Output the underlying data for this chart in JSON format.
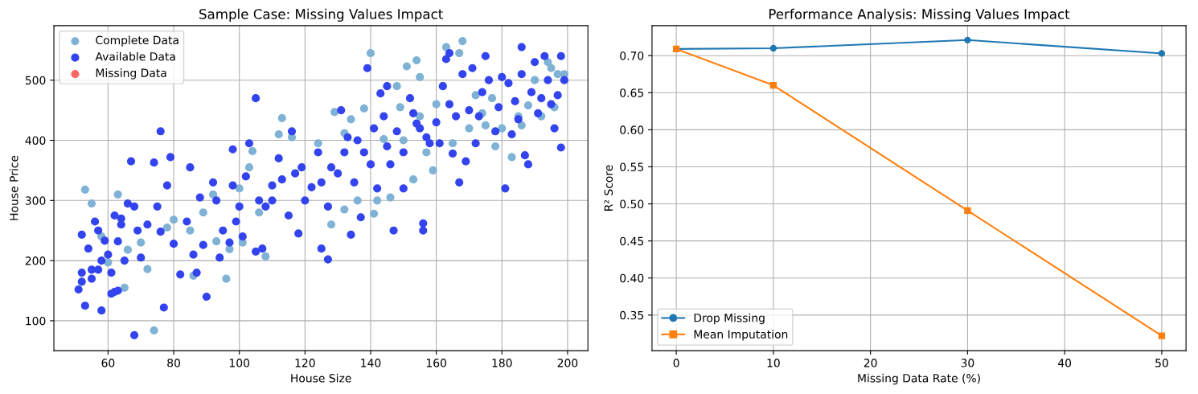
{
  "chart_data": [
    {
      "type": "scatter",
      "title": "Sample Case: Missing Values Impact",
      "xlabel": "House Size",
      "ylabel": "House Price",
      "xlim": [
        43.5,
        206.2
      ],
      "ylim": [
        50.3,
        590.7
      ],
      "xticks": [
        60,
        80,
        100,
        120,
        140,
        160,
        180,
        200
      ],
      "yticks": [
        100,
        200,
        300,
        400,
        500
      ],
      "grid": true,
      "legend": "top left",
      "marker": "circle",
      "series": [
        {
          "name": "Complete Data",
          "color": "#7fb2d5",
          "x": [
            53,
            55,
            58,
            60,
            63,
            65,
            66,
            70,
            72,
            74,
            78,
            80,
            85,
            86,
            89,
            92,
            93,
            96,
            97,
            100,
            101,
            103,
            104,
            106,
            108,
            112,
            113,
            116,
            124,
            128,
            129,
            132,
            132,
            134,
            136,
            138,
            140,
            141,
            142,
            144,
            146,
            148,
            149,
            151,
            153,
            154,
            155,
            155,
            157,
            159,
            160,
            162,
            163,
            165,
            167,
            168,
            170,
            172,
            174,
            175,
            177,
            180,
            183,
            185,
            186,
            188,
            190,
            192,
            194,
            195,
            196,
            197,
            199,
            178,
            150
          ],
          "values": [
            318,
            295,
            240,
            197,
            310,
            155,
            218,
            230,
            186,
            84,
            255,
            268,
            250,
            175,
            280,
            310,
            232,
            170,
            219,
            320,
            230,
            355,
            382,
            280,
            207,
            410,
            437,
            405,
            395,
            260,
            447,
            412,
            285,
            435,
            300,
            453,
            545,
            278,
            300,
            402,
            305,
            490,
            455,
            523,
            335,
            533,
            505,
            440,
            380,
            350,
            460,
            490,
            555,
            395,
            545,
            565,
            420,
            475,
            445,
            425,
            470,
            420,
            372,
            440,
            425,
            458,
            500,
            440,
            530,
            520,
            455,
            510,
            510,
            390,
            400
          ]
        },
        {
          "name": "Available Data",
          "color": "#3344ee",
          "x": [
            51,
            52,
            52,
            53,
            52,
            54,
            55,
            55,
            56,
            57,
            58,
            58,
            59,
            60,
            61,
            62,
            62,
            63,
            64,
            65,
            66,
            67,
            68,
            68,
            69,
            70,
            72,
            74,
            75,
            76,
            76,
            77,
            78,
            79,
            82,
            84,
            85,
            86,
            87,
            88,
            89,
            90,
            92,
            93,
            94,
            95,
            97,
            98,
            98,
            99,
            100,
            101,
            102,
            103,
            105,
            105,
            106,
            107,
            108,
            110,
            112,
            113,
            115,
            116,
            117,
            118,
            119,
            120,
            122,
            124,
            125,
            125,
            127,
            127,
            128,
            130,
            131,
            132,
            133,
            134,
            135,
            136,
            137,
            138,
            139,
            140,
            141,
            142,
            143,
            144,
            145,
            146,
            147,
            148,
            150,
            150,
            152,
            153,
            154,
            155,
            156,
            156,
            157,
            158,
            160,
            161,
            162,
            163,
            164,
            165,
            166,
            167,
            168,
            169,
            170,
            171,
            172,
            173,
            174,
            175,
            176,
            178,
            179,
            180,
            181,
            182,
            183,
            184,
            185,
            186,
            187,
            188,
            189,
            190,
            191,
            192,
            193,
            194,
            195,
            196,
            197,
            198,
            198,
            199,
            186,
            164,
            145,
            110,
            80,
            63,
            61,
            57,
            64
          ],
          "values": [
            152,
            165,
            180,
            125,
            243,
            220,
            170,
            185,
            265,
            250,
            200,
            117,
            233,
            210,
            180,
            275,
            148,
            232,
            270,
            200,
            295,
            365,
            290,
            76,
            250,
            205,
            260,
            363,
            290,
            415,
            248,
            122,
            325,
            372,
            177,
            265,
            355,
            210,
            180,
            305,
            226,
            140,
            330,
            300,
            205,
            250,
            230,
            385,
            325,
            265,
            290,
            240,
            340,
            395,
            470,
            215,
            300,
            220,
            290,
            325,
            370,
            335,
            275,
            415,
            345,
            245,
            355,
            300,
            322,
            380,
            220,
            330,
            290,
            202,
            355,
            345,
            450,
            380,
            405,
            243,
            330,
            400,
            272,
            380,
            520,
            360,
            420,
            320,
            478,
            440,
            390,
            360,
            250,
            415,
            380,
            320,
            470,
            445,
            428,
            420,
            250,
            262,
            405,
            395,
            430,
            395,
            490,
            535,
            545,
            378,
            440,
            330,
            510,
            365,
            450,
            520,
            395,
            440,
            480,
            540,
            500,
            415,
            455,
            505,
            320,
            495,
            410,
            465,
            435,
            555,
            375,
            360,
            480,
            530,
            445,
            470,
            540,
            500,
            460,
            420,
            475,
            388,
            540,
            500,
            510,
            460,
            490,
            300,
            228,
            150,
            145,
            185,
            260
          ]
        },
        {
          "name": "Missing Data",
          "color": "#ff6666"
        }
      ]
    },
    {
      "type": "line",
      "title": "Performance Analysis: Missing Values Impact",
      "xlabel": "Missing Data Rate (%)",
      "ylabel": "R² Score",
      "xlim": [
        -2.5,
        52.5
      ],
      "ylim": [
        0.302,
        0.7405
      ],
      "xticks": [
        0,
        10,
        20,
        30,
        40,
        50
      ],
      "yticks": [
        {
          "value": 0.35,
          "label": "0.35"
        },
        {
          "value": 0.4,
          "label": "0.40"
        },
        {
          "value": 0.45,
          "label": "0.45"
        },
        {
          "value": 0.5,
          "label": "0.50"
        },
        {
          "value": 0.55,
          "label": "0.55"
        },
        {
          "value": 0.6,
          "label": "0.60"
        },
        {
          "value": 0.65,
          "label": "0.65"
        },
        {
          "value": 0.7,
          "label": "0.70"
        }
      ],
      "grid": true,
      "legend": "bottom left",
      "line_style": "solid",
      "x": [
        0,
        10,
        30,
        50
      ],
      "series": [
        {
          "name": "Drop Missing",
          "color": "#1f77b4",
          "marker": "circle",
          "values": [
            0.709,
            0.71,
            0.721,
            0.703
          ]
        },
        {
          "name": "Mean Imputation",
          "color": "#ff7f0e",
          "marker": "square",
          "values": [
            0.709,
            0.66,
            0.491,
            0.322
          ]
        }
      ]
    }
  ]
}
